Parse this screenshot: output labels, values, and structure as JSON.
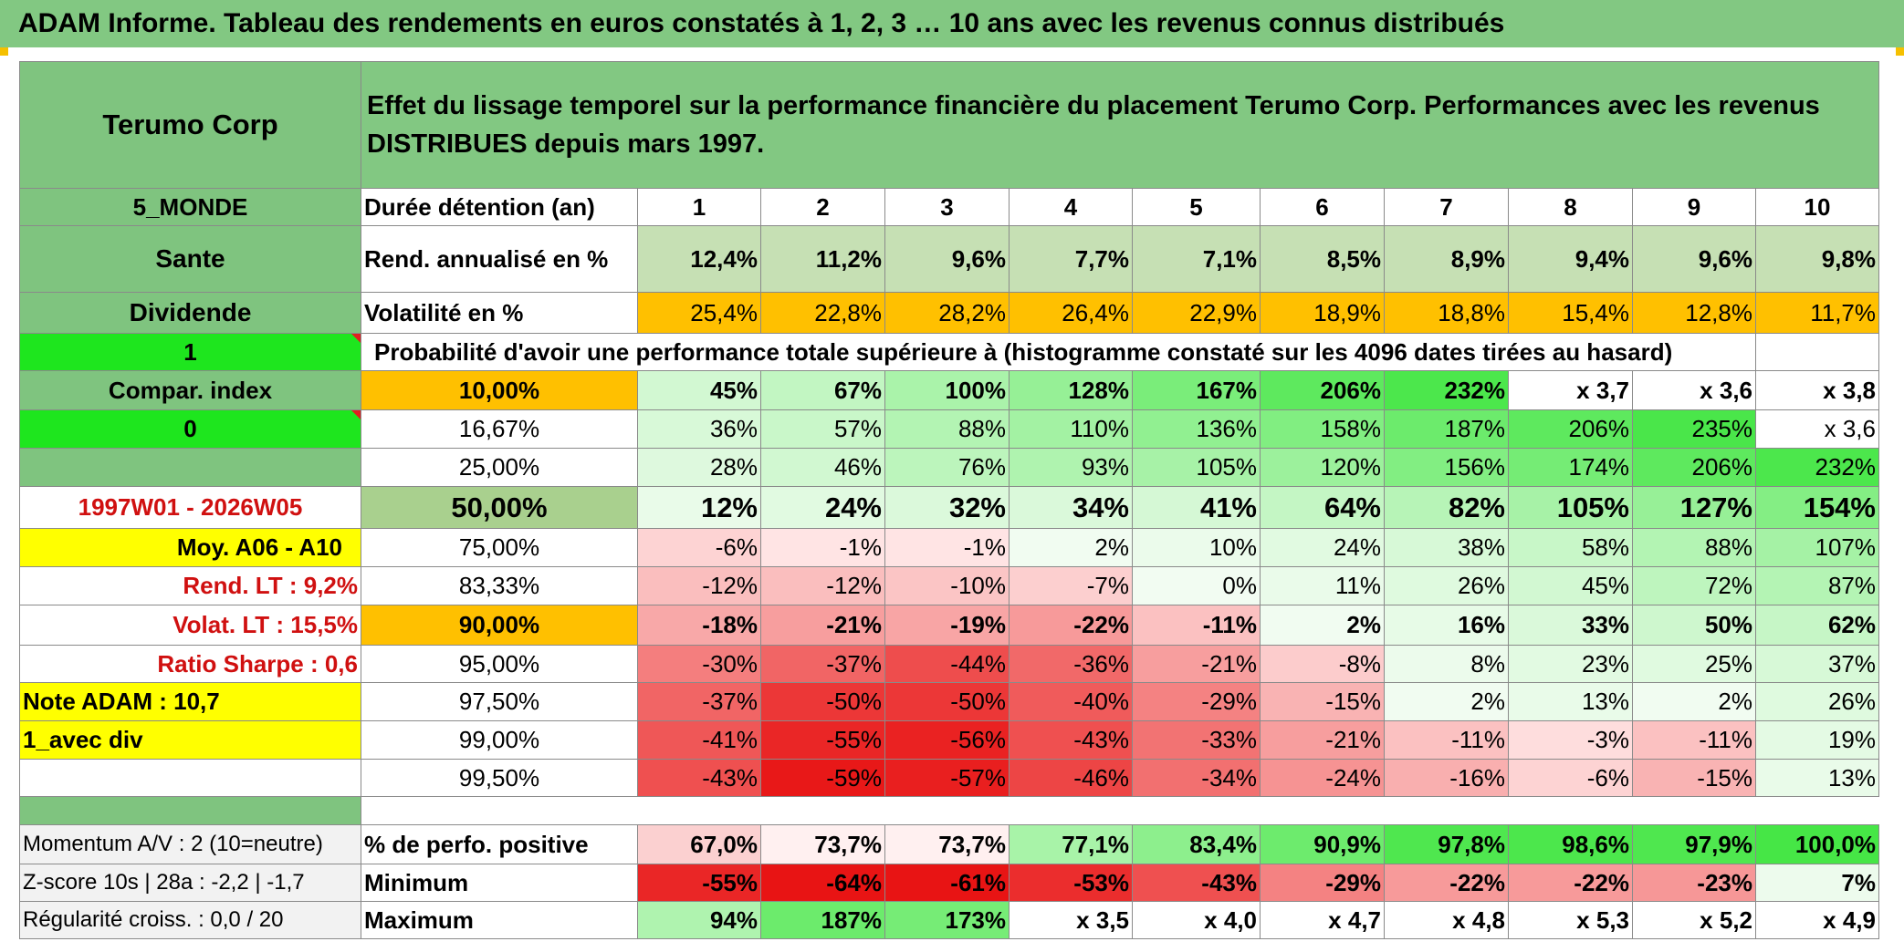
{
  "title": "ADAM Informe. Tableau des rendements en euros constatés à 1, 2, 3 … 10 ans avec les revenus connus distribués",
  "header": {
    "name": "Terumo Corp",
    "description": "Effet du lissage temporel sur la performance financière du placement Terumo Corp. Performances avec les revenus DISTRIBUES depuis mars 1997."
  },
  "sidebar": {
    "zone": "5_MONDE",
    "sector": "Sante",
    "mode": "Dividende",
    "selector_1": "1",
    "compar_index": "Compar. index",
    "selector_0": "0",
    "blank": "",
    "period": "1997W01 - 2026W05",
    "moy": "Moy. A06 - A10",
    "rend_lt": "Rend. LT :   9,2%",
    "volat_lt": "Volat. LT :   15,5%",
    "sharpe": "Ratio Sharpe :    0,6",
    "note": "Note ADAM : 10,7",
    "div_mode": "1_avec div",
    "momentum": "Momentum A/V : 2 (10=neutre)",
    "zscore": "Z-score 10s | 28a : -2,2 | -1,7",
    "regularite": "Régularité croiss. : 0,0 / 20"
  },
  "labels": {
    "duree": "Durée détention (an)",
    "rend": "Rend. annualisé en %",
    "volat": "Volatilité en %",
    "proba": "Probabilité d'avoir une performance totale supérieure à (histogramme constaté sur les 4096 dates tirées au hasard)",
    "pct_pos": "% de perfo. positive",
    "minimum": "Minimum",
    "maximum": "Maximum"
  },
  "years": [
    "1",
    "2",
    "3",
    "4",
    "5",
    "6",
    "7",
    "8",
    "9",
    "10"
  ],
  "rend": [
    "12,4%",
    "11,2%",
    "9,6%",
    "7,7%",
    "7,1%",
    "8,5%",
    "8,9%",
    "9,4%",
    "9,6%",
    "9,8%"
  ],
  "volat": [
    "25,4%",
    "22,8%",
    "28,2%",
    "26,4%",
    "22,9%",
    "18,9%",
    "18,8%",
    "15,4%",
    "12,8%",
    "11,7%"
  ],
  "quantiles": [
    {
      "q": "10,00%",
      "vals": [
        "45%",
        "67%",
        "100%",
        "128%",
        "167%",
        "206%",
        "232%",
        "x 3,7",
        "x 3,6",
        "x 3,8"
      ]
    },
    {
      "q": "16,67%",
      "vals": [
        "36%",
        "57%",
        "88%",
        "110%",
        "136%",
        "158%",
        "187%",
        "206%",
        "235%",
        "x 3,6"
      ]
    },
    {
      "q": "25,00%",
      "vals": [
        "28%",
        "46%",
        "76%",
        "93%",
        "105%",
        "120%",
        "156%",
        "174%",
        "206%",
        "232%"
      ]
    },
    {
      "q": "50,00%",
      "vals": [
        "12%",
        "24%",
        "32%",
        "34%",
        "41%",
        "64%",
        "82%",
        "105%",
        "127%",
        "154%"
      ]
    },
    {
      "q": "75,00%",
      "vals": [
        "-6%",
        "-1%",
        "-1%",
        "2%",
        "10%",
        "24%",
        "38%",
        "58%",
        "88%",
        "107%"
      ]
    },
    {
      "q": "83,33%",
      "vals": [
        "-12%",
        "-12%",
        "-10%",
        "-7%",
        "0%",
        "11%",
        "26%",
        "45%",
        "72%",
        "87%"
      ]
    },
    {
      "q": "90,00%",
      "vals": [
        "-18%",
        "-21%",
        "-19%",
        "-22%",
        "-11%",
        "2%",
        "16%",
        "33%",
        "50%",
        "62%"
      ]
    },
    {
      "q": "95,00%",
      "vals": [
        "-30%",
        "-37%",
        "-44%",
        "-36%",
        "-21%",
        "-8%",
        "8%",
        "23%",
        "25%",
        "37%"
      ]
    },
    {
      "q": "97,50%",
      "vals": [
        "-37%",
        "-50%",
        "-50%",
        "-40%",
        "-29%",
        "-15%",
        "2%",
        "13%",
        "2%",
        "26%"
      ]
    },
    {
      "q": "99,00%",
      "vals": [
        "-41%",
        "-55%",
        "-56%",
        "-43%",
        "-33%",
        "-21%",
        "-11%",
        "-3%",
        "-11%",
        "19%"
      ]
    },
    {
      "q": "99,50%",
      "vals": [
        "-43%",
        "-59%",
        "-57%",
        "-46%",
        "-34%",
        "-24%",
        "-16%",
        "-6%",
        "-15%",
        "13%"
      ]
    }
  ],
  "pct_pos": [
    "67,0%",
    "73,7%",
    "73,7%",
    "77,1%",
    "83,4%",
    "90,9%",
    "97,8%",
    "98,6%",
    "97,9%",
    "100,0%"
  ],
  "minimum": [
    "-55%",
    "-64%",
    "-61%",
    "-53%",
    "-43%",
    "-29%",
    "-22%",
    "-22%",
    "-23%",
    "7%"
  ],
  "maximum": [
    "94%",
    "187%",
    "173%",
    "x 3,5",
    "x 4,0",
    "x 4,7",
    "x 4,8",
    "x 5,3",
    "x 5,2",
    "x 4,9"
  ],
  "colors": {
    "header_green": "#82c882",
    "side_green": "#7fc47f",
    "bright_green": "#1ee61e",
    "yellow": "#ffff00",
    "orange": "#ffc000",
    "rend_bg": "#c6e0b4",
    "median_bg": "#a9d08e",
    "light_gray": "#f2f2f2",
    "red_text": "#d01010"
  }
}
